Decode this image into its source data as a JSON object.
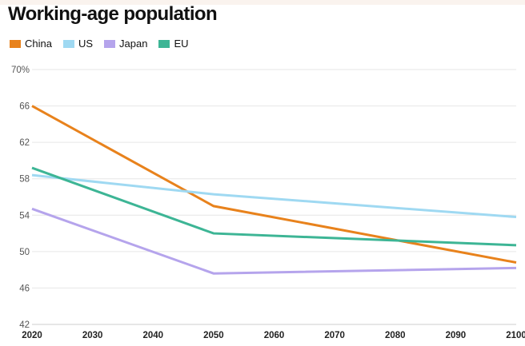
{
  "chart_data": {
    "type": "line",
    "title": "Working-age population",
    "x": [
      2020,
      2050,
      2100
    ],
    "x_ticks": [
      "2020",
      "2030",
      "2040",
      "2050",
      "2060",
      "2070",
      "2080",
      "2090",
      "2100"
    ],
    "y_ticks": [
      "42",
      "46",
      "50",
      "54",
      "58",
      "62",
      "66",
      "70%"
    ],
    "ylim": [
      42,
      70
    ],
    "xlim": [
      2020,
      2100
    ],
    "grid": true,
    "legend_position": "top-left",
    "series": [
      {
        "name": "China",
        "color": "#e8821c",
        "values": [
          66.0,
          55.0,
          48.8
        ]
      },
      {
        "name": "US",
        "color": "#9fd9f2",
        "values": [
          58.4,
          56.3,
          53.8
        ]
      },
      {
        "name": "Japan",
        "color": "#b5a4ec",
        "values": [
          54.7,
          47.6,
          48.2
        ]
      },
      {
        "name": "EU",
        "color": "#3db595",
        "values": [
          59.2,
          52.0,
          50.7
        ]
      }
    ]
  }
}
